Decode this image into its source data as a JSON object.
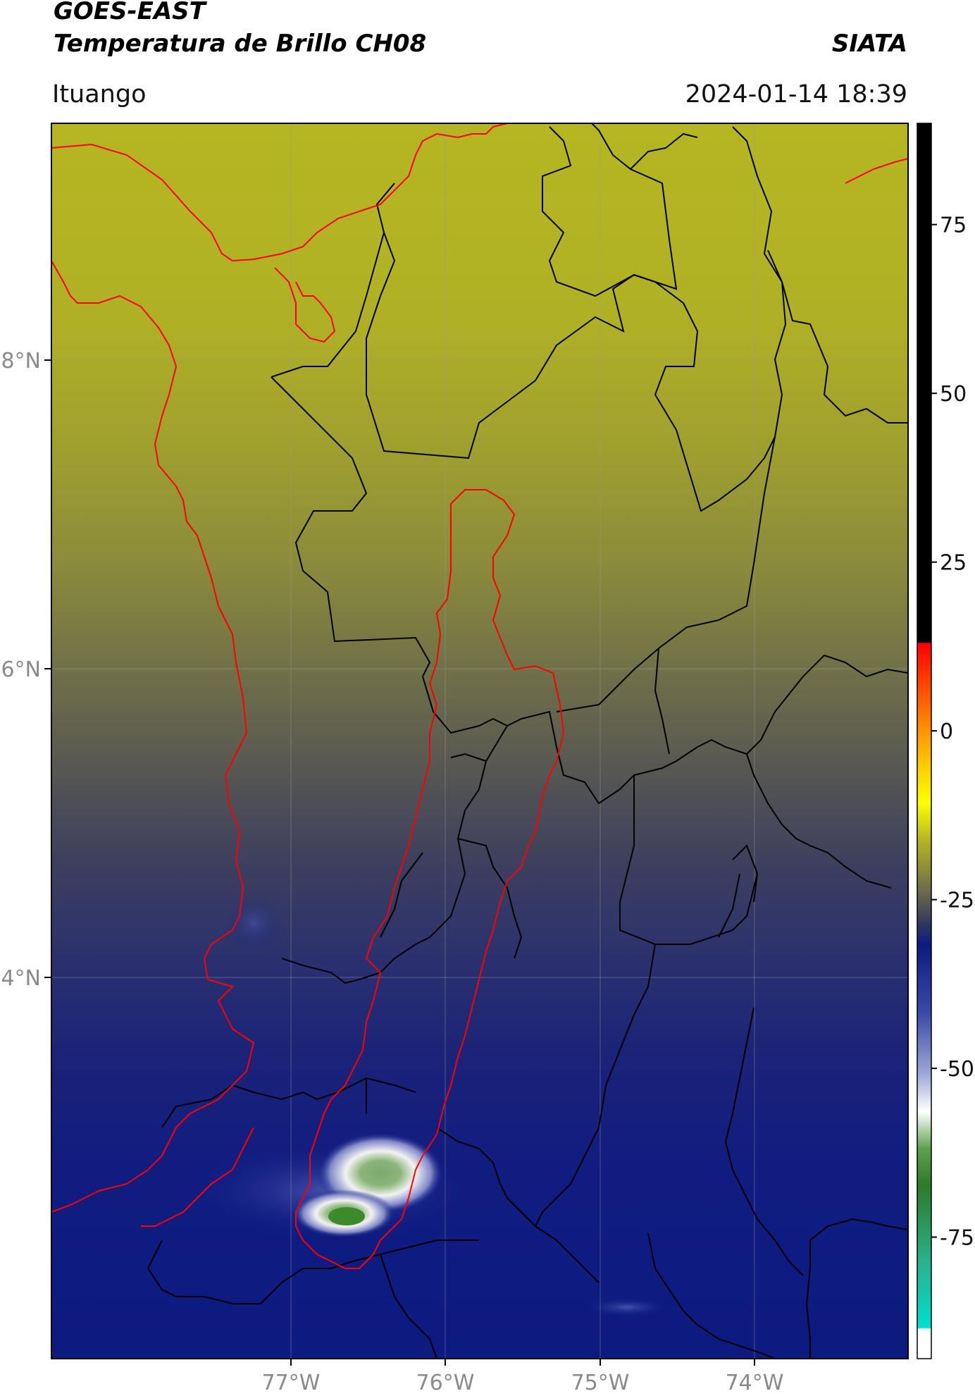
{
  "header": {
    "title_line1": "GOES-EAST",
    "title_line2": "Temperatura de Brillo CH08",
    "source": "SIATA",
    "region": "Ituango",
    "datetime": "2024-01-14 18:39"
  },
  "map": {
    "lon_ticks": [
      "77°W",
      "76°W",
      "75°W",
      "74°W"
    ],
    "lat_ticks": [
      "8°N",
      "6°N",
      "4°N"
    ],
    "colors": {
      "yellow": "#b6b622",
      "olive": "#8c8c3a",
      "gray": "#5d5d55",
      "slate": "#3a3c5c",
      "indigo": "#262d75",
      "navy": "#0d1a80",
      "cold_white": "#f2f2f2",
      "cold_green": "#3d8a2c",
      "river_basin": "#ff0000",
      "borders": "#000000"
    }
  },
  "colorbar": {
    "ticks": [
      "75",
      "50",
      "25",
      "0",
      "-25",
      "-50",
      "-75"
    ],
    "tick_values": [
      75,
      50,
      25,
      0,
      -25,
      -50,
      -75
    ],
    "vmin": -93,
    "vmax": 90
  }
}
